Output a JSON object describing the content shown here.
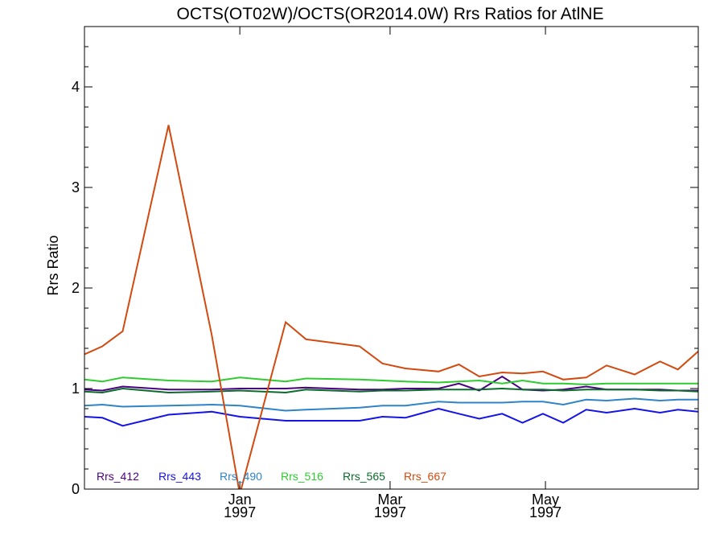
{
  "chart_data": {
    "type": "line",
    "title": "OCTS(OT02W)/OCTS(OR2014.0W)  Rrs Ratios for AtlNE",
    "xlabel": "",
    "ylabel": "Rrs Ratio",
    "x_range": [
      "1996-11-01",
      "1997-06-30"
    ],
    "ylim": [
      0,
      4.6
    ],
    "y_ticks": [
      0,
      1,
      2,
      3,
      4
    ],
    "x_ticks": [
      {
        "date": "1997-01-01",
        "label_top": "Jan",
        "label_bottom": "1997"
      },
      {
        "date": "1997-03-01",
        "label_top": "Mar",
        "label_bottom": "1997"
      },
      {
        "date": "1997-05-01",
        "label_top": "May",
        "label_bottom": "1997"
      }
    ],
    "legend_placement": "bottom-left",
    "x": [
      "1996-11-01",
      "1996-11-08",
      "1996-11-16",
      "1996-12-04",
      "1996-12-21",
      "1997-01-01",
      "1997-01-19",
      "1997-01-27",
      "1997-02-17",
      "1997-02-26",
      "1997-03-07",
      "1997-03-20",
      "1997-03-28",
      "1997-04-05",
      "1997-04-14",
      "1997-04-22",
      "1997-04-30",
      "1997-05-08",
      "1997-05-17",
      "1997-05-25",
      "1997-06-05",
      "1997-06-15",
      "1997-06-22",
      "1997-06-30"
    ],
    "series": [
      {
        "name": "Rrs_412",
        "color": "#4b0082",
        "values": [
          0.99,
          0.98,
          1.02,
          0.99,
          0.99,
          1.0,
          1.0,
          1.01,
          0.99,
          0.99,
          1.0,
          1.0,
          1.05,
          0.98,
          1.12,
          0.99,
          0.98,
          0.99,
          1.02,
          0.99,
          0.99,
          0.99,
          0.98,
          0.98
        ]
      },
      {
        "name": "Rrs_443",
        "color": "#1414e6",
        "values": [
          0.72,
          0.71,
          0.63,
          0.74,
          0.77,
          0.72,
          0.68,
          0.68,
          0.68,
          0.72,
          0.71,
          0.8,
          0.75,
          0.7,
          0.75,
          0.66,
          0.75,
          0.66,
          0.79,
          0.76,
          0.8,
          0.76,
          0.79,
          0.77
        ]
      },
      {
        "name": "Rrs_490",
        "color": "#2f84c8",
        "values": [
          0.83,
          0.84,
          0.82,
          0.83,
          0.84,
          0.83,
          0.78,
          0.79,
          0.81,
          0.83,
          0.83,
          0.87,
          0.86,
          0.86,
          0.86,
          0.87,
          0.87,
          0.84,
          0.89,
          0.88,
          0.9,
          0.88,
          0.89,
          0.89
        ]
      },
      {
        "name": "Rrs_516",
        "color": "#2ecc2e",
        "values": [
          1.09,
          1.07,
          1.11,
          1.08,
          1.07,
          1.11,
          1.07,
          1.1,
          1.09,
          1.08,
          1.07,
          1.06,
          1.07,
          1.08,
          1.05,
          1.08,
          1.05,
          1.05,
          1.04,
          1.05,
          1.05,
          1.05,
          1.05,
          1.05
        ]
      },
      {
        "name": "Rrs_565",
        "color": "#0a6b2a",
        "values": [
          0.97,
          0.96,
          1.0,
          0.96,
          0.97,
          0.98,
          0.96,
          0.99,
          0.97,
          0.98,
          0.98,
          0.99,
          0.99,
          0.99,
          1.0,
          0.99,
          0.99,
          0.98,
          0.99,
          0.99,
          0.99,
          0.98,
          0.98,
          0.97
        ]
      },
      {
        "name": "Rrs_667",
        "color": "#d24a0f",
        "values": [
          1.34,
          1.42,
          1.57,
          3.62,
          1.53,
          -0.05,
          1.66,
          1.49,
          1.42,
          1.25,
          1.2,
          1.17,
          1.24,
          1.12,
          1.16,
          1.15,
          1.17,
          1.09,
          1.11,
          1.23,
          1.14,
          1.27,
          1.19,
          1.37
        ]
      }
    ]
  }
}
